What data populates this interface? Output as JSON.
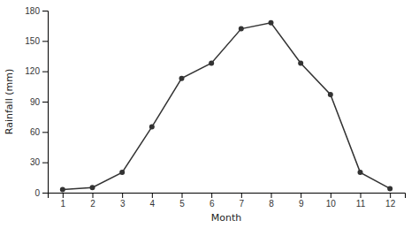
{
  "chart_data": {
    "type": "line",
    "x": [
      1,
      2,
      3,
      4,
      5,
      6,
      7,
      8,
      9,
      10,
      11,
      12
    ],
    "values": [
      3,
      5,
      20,
      65,
      113,
      128,
      162,
      168,
      128,
      97,
      20,
      4
    ],
    "xlabel": "Month",
    "ylabel": "Rainfall (mm)",
    "xlim": [
      0.5,
      12.5
    ],
    "ylim": [
      0,
      180
    ],
    "xticks": [
      1,
      2,
      3,
      4,
      5,
      6,
      7,
      8,
      9,
      10,
      11,
      12
    ],
    "yticks": [
      0,
      30,
      60,
      90,
      120,
      150,
      180
    ],
    "color": "#333333",
    "marker": "circle",
    "grid": false
  }
}
